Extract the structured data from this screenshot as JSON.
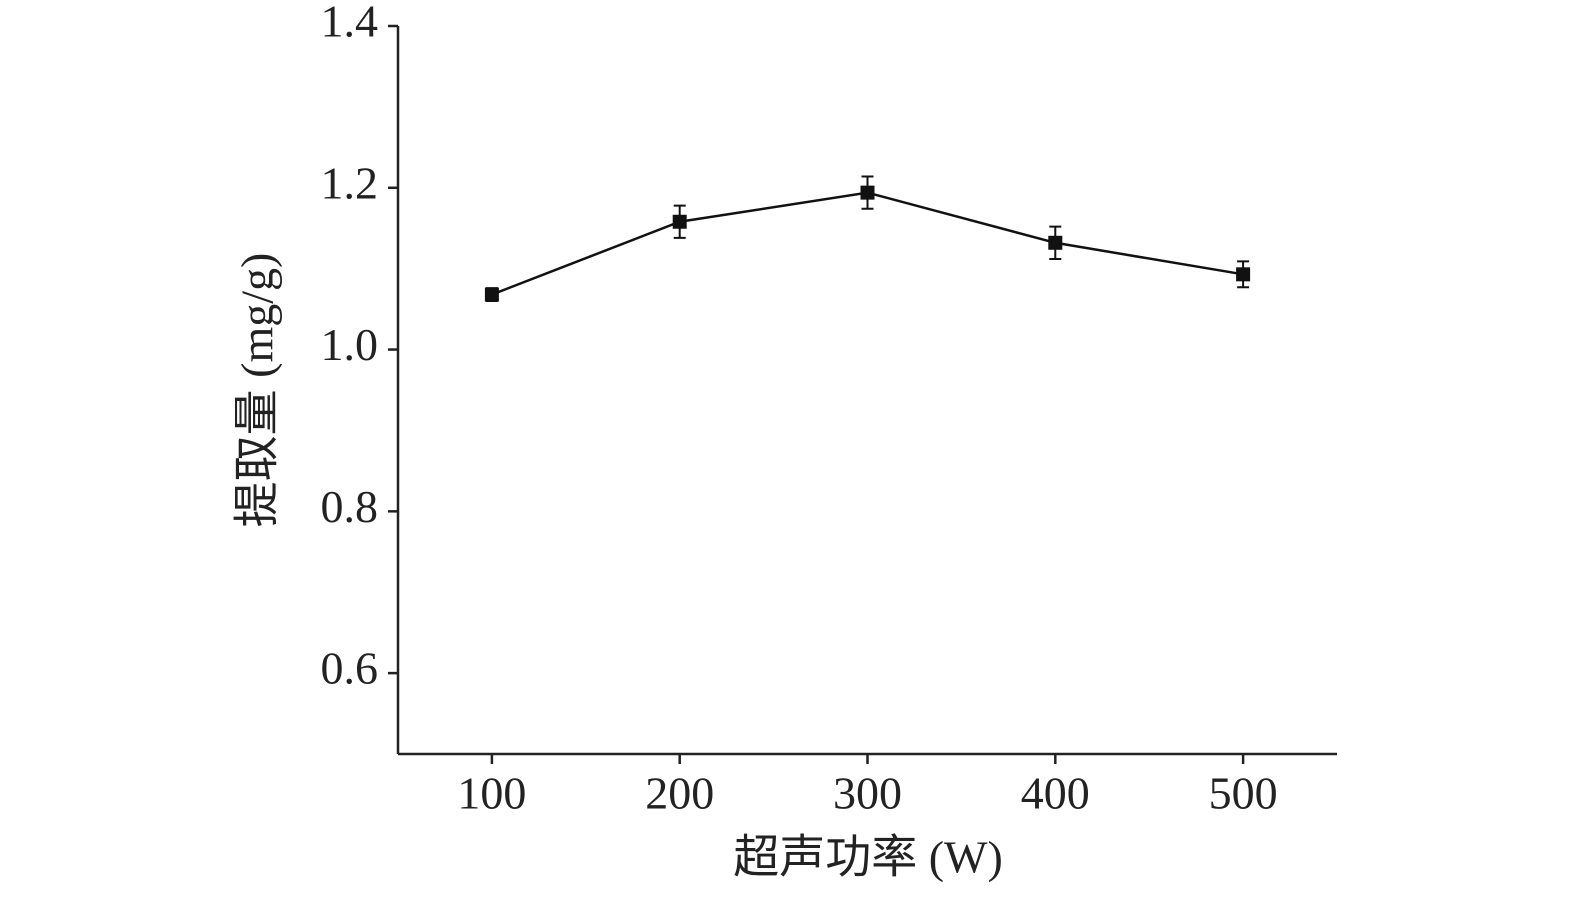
{
  "chart_data": {
    "type": "line",
    "x_label": "超声功率 (W)",
    "y_label": "提取量 (mg/g)",
    "x": [
      100,
      200,
      300,
      400,
      500
    ],
    "values": [
      1.068,
      1.158,
      1.194,
      1.132,
      1.093
    ],
    "errors": [
      0.008,
      0.02,
      0.02,
      0.02,
      0.016
    ],
    "color": "#111111",
    "xlim": [
      50,
      550
    ],
    "xticks": [
      100,
      200,
      300,
      400,
      500
    ],
    "ylim": [
      0.5,
      1.4
    ],
    "yticks": [
      0.6,
      0.8,
      {
        "value": 1,
        "label": "1.0"
      },
      1.2,
      1.4
    ],
    "grid": false
  }
}
